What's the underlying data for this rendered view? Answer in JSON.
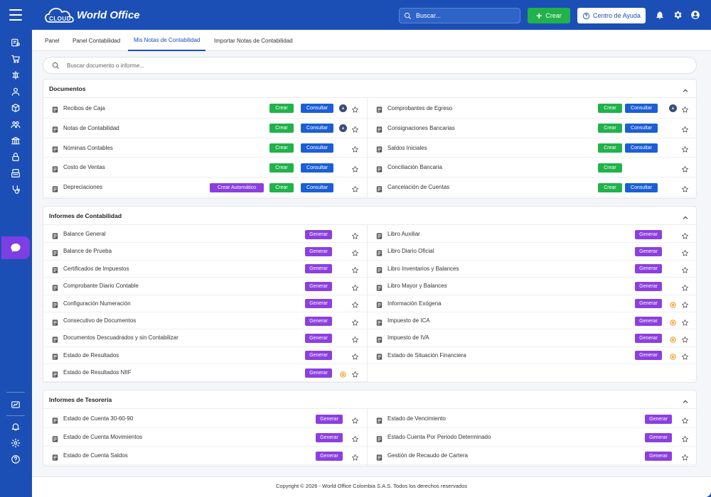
{
  "app": {
    "logo_small": "CLOUD",
    "logo_text": "World Office"
  },
  "header": {
    "search_placeholder": "Buscar...",
    "create_label": "Crear",
    "help_label": "Centro de Ayuda"
  },
  "tabs": [
    {
      "label": "Panel"
    },
    {
      "label": "Panel Contabilidad"
    },
    {
      "label": "Mis Notas de Contabilidad",
      "active": true
    },
    {
      "label": "Importar Notas de Contabilidad"
    }
  ],
  "search": {
    "placeholder": "Buscar documento o informe..."
  },
  "labels": {
    "crear": "Crear",
    "consultar": "Consultar",
    "generar": "Generar",
    "crear_auto": "Crear Automático"
  },
  "documentos": {
    "title": "Documentos",
    "left": [
      {
        "label": "Recibos de Caja",
        "icon": "receipt-icon",
        "crear": true,
        "consultar": true,
        "download": true
      },
      {
        "label": "Notas de Contabilidad",
        "icon": "note-icon",
        "crear": true,
        "consultar": true,
        "download": true
      },
      {
        "label": "Nóminas Contables",
        "icon": "payroll-icon",
        "crear": true,
        "consultar": true
      },
      {
        "label": "Costo de Ventas",
        "icon": "money-bag-icon",
        "crear": true,
        "consultar": true
      },
      {
        "label": "Depreciaciones",
        "icon": "chart-line-icon",
        "crear_auto": true,
        "crear": true,
        "consultar": true
      }
    ],
    "right": [
      {
        "label": "Comprobantes de Egreso",
        "icon": "voucher-icon",
        "crear": true,
        "consultar": true,
        "download": true
      },
      {
        "label": "Consignaciones Bancarias",
        "icon": "bank-icon",
        "crear": true,
        "consultar": true
      },
      {
        "label": "Saldos Iniciales",
        "icon": "dollar-circle-icon",
        "crear": true,
        "consultar": true
      },
      {
        "label": "Conciliación Bancaria",
        "icon": "bank-icon",
        "crear": true
      },
      {
        "label": "Cancelación de Cuentas",
        "icon": "ban-icon",
        "crear": true,
        "consultar": true
      }
    ]
  },
  "informes_contabilidad": {
    "title": "Informes de Contabilidad",
    "left": [
      {
        "label": "Balance General",
        "icon": "globe-icon"
      },
      {
        "label": "Balance de Prueba",
        "icon": "balance-icon"
      },
      {
        "label": "Certificados de Impuestos",
        "icon": "certificate-icon"
      },
      {
        "label": "Comprobante Diario Contable",
        "icon": "file-icon"
      },
      {
        "label": "Configuración Numeración",
        "icon": "sort-icon"
      },
      {
        "label": "Consecutivo de Documentos",
        "icon": "list-icon"
      },
      {
        "label": "Documentos Descuadrados y sin Contabilizar",
        "icon": "docs-icon"
      },
      {
        "label": "Estado de Resultados",
        "icon": "chart-line-icon"
      },
      {
        "label": "Estado de Resultados NIIF",
        "icon": "file-chart-icon",
        "settings": true
      }
    ],
    "right": [
      {
        "label": "Libro Auxiliar",
        "icon": "book-icon"
      },
      {
        "label": "Libro Diario Oficial",
        "icon": "book-icon"
      },
      {
        "label": "Libro Inventarios y Balances",
        "icon": "boxes-icon"
      },
      {
        "label": "Libro Mayor y Balances",
        "icon": "books-icon"
      },
      {
        "label": "Información Exógena",
        "icon": "file-icon",
        "settings": true
      },
      {
        "label": "Impuesto de ICA",
        "icon": "file-icon",
        "settings": true
      },
      {
        "label": "Impuesto de IVA",
        "icon": "file-icon",
        "settings": true
      },
      {
        "label": "Estado de Situación Financiera",
        "icon": "file-chart-icon",
        "settings": true
      }
    ]
  },
  "informes_tesoreria": {
    "title": "Informes de Tesorería",
    "left": [
      {
        "label": "Estado de Cuenta 30-60-90",
        "icon": "calendar-icon"
      },
      {
        "label": "Estado de Cuenta Movimientos",
        "icon": "exchange-icon"
      },
      {
        "label": "Estado de Cuenta Saldos",
        "icon": "coins-icon"
      }
    ],
    "right": [
      {
        "label": "Estado de Vencimiento",
        "icon": "file-clock-icon"
      },
      {
        "label": "Estado Cuenta Por Periodo Determinado",
        "icon": "user-clock-icon"
      },
      {
        "label": "Gestión de Recaudo de Cartera",
        "icon": "calendar-icon"
      }
    ]
  },
  "footer": {
    "text": "Copyright © 2026 - World Office Colombia S.A.S. Todos los derechos reservados"
  },
  "colors": {
    "brand": "#1b4fb6",
    "green": "#21b24b",
    "blue": "#1c5fd4",
    "purple": "#8c3fe0",
    "orange": "#f08a00"
  }
}
